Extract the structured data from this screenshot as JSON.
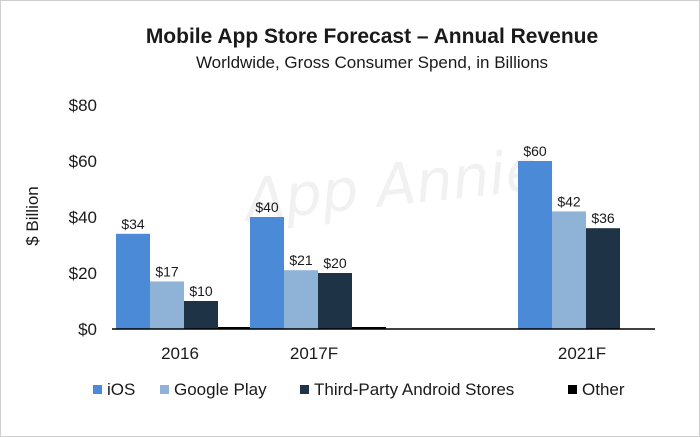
{
  "chart_data": {
    "type": "bar",
    "title": "Mobile App Store Forecast – Annual Revenue",
    "subtitle": "Worldwide, Gross Consumer Spend, in Billions",
    "ylabel": "$ Billion",
    "xlabel": "",
    "watermark": "App Annie",
    "categories": [
      "2016",
      "2017F",
      "2021F"
    ],
    "ylim": [
      0,
      80
    ],
    "yticks": [
      0,
      20,
      40,
      60,
      80
    ],
    "ytick_labels": [
      "$0",
      "$20",
      "$40",
      "$60",
      "$80"
    ],
    "series": [
      {
        "name": "iOS",
        "color": "#4a8ad6",
        "values": [
          34,
          40,
          60
        ],
        "labels": [
          "$34",
          "$40",
          "$60"
        ]
      },
      {
        "name": "Google Play",
        "color": "#8fb3d6",
        "values": [
          17,
          21,
          42
        ],
        "labels": [
          "$17",
          "$21",
          "$42"
        ]
      },
      {
        "name": "Third-Party Android Stores",
        "color": "#1f3347",
        "values": [
          10,
          20,
          36
        ],
        "labels": [
          "$10",
          "$20",
          "$36"
        ]
      },
      {
        "name": "Other",
        "color": "#000000",
        "values": [
          0.5,
          0.5,
          0
        ],
        "labels": [
          "",
          "",
          ""
        ]
      }
    ],
    "grid": false,
    "legend_position": "bottom"
  }
}
